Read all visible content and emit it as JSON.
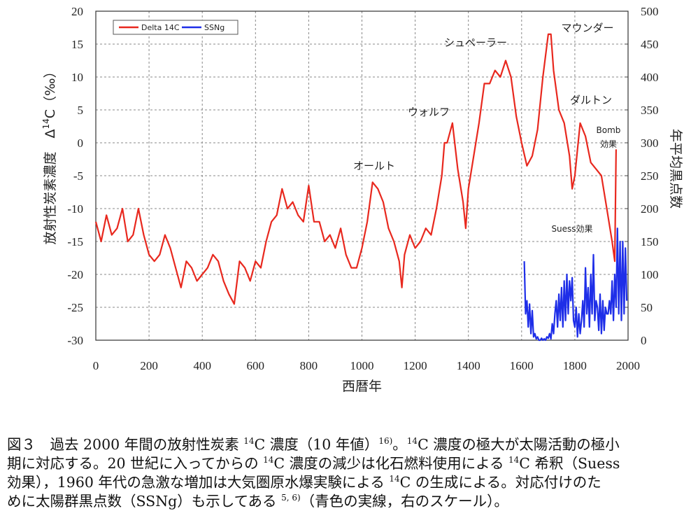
{
  "chart_data": {
    "type": "line",
    "x_label": "西暦年",
    "y_label": [
      {
        "text": "放射性炭素濃度　Δ"
      },
      {
        "sup": "14"
      },
      {
        "text": "C（‰）"
      }
    ],
    "y2_label": "年平均黒点数",
    "xlim": [
      0,
      2000
    ],
    "xticks": [
      0,
      200,
      400,
      600,
      800,
      1000,
      1200,
      1400,
      1600,
      1800,
      2000
    ],
    "ylim": [
      -30,
      20
    ],
    "yticks": [
      -30,
      -25,
      -20,
      -15,
      -10,
      -5,
      0,
      5,
      10,
      15,
      20
    ],
    "y2lim": [
      0,
      500
    ],
    "y2ticks": [
      0,
      50,
      100,
      150,
      200,
      250,
      300,
      350,
      400,
      450,
      500
    ],
    "grid": true,
    "legend": "upper left",
    "annotations": [
      "オールト",
      "ウォルフ",
      "シュペーラー",
      "マウンダー",
      "ダルトン",
      "Bomb",
      "効果",
      "Suess効果"
    ],
    "series": [
      {
        "name": "Delta 14C",
        "color": "#e8281e",
        "x": [
          0,
          20,
          40,
          60,
          80,
          100,
          120,
          140,
          160,
          180,
          200,
          220,
          240,
          260,
          280,
          300,
          320,
          340,
          360,
          380,
          400,
          420,
          440,
          460,
          480,
          500,
          520,
          540,
          560,
          580,
          600,
          620,
          640,
          660,
          680,
          700,
          720,
          740,
          760,
          780,
          800,
          820,
          840,
          860,
          880,
          900,
          920,
          940,
          960,
          980,
          1000,
          1020,
          1040,
          1060,
          1080,
          1100,
          1120,
          1140,
          1150,
          1160,
          1180,
          1200,
          1220,
          1240,
          1260,
          1280,
          1300,
          1310,
          1320,
          1340,
          1360,
          1380,
          1390,
          1400,
          1420,
          1440,
          1460,
          1480,
          1500,
          1520,
          1540,
          1560,
          1580,
          1600,
          1620,
          1640,
          1660,
          1680,
          1700,
          1710,
          1720,
          1740,
          1760,
          1780,
          1790,
          1800,
          1820,
          1840,
          1860,
          1880,
          1900,
          1920,
          1940,
          1950,
          1955
        ],
        "values": [
          -12,
          -15,
          -11,
          -14,
          -13,
          -10,
          -15,
          -14,
          -10,
          -14,
          -17,
          -18,
          -17,
          -14,
          -16,
          -19,
          -22,
          -18,
          -19,
          -21,
          -20,
          -19,
          -17,
          -18,
          -21,
          -23,
          -24.5,
          -18,
          -19,
          -21,
          -18,
          -19,
          -15,
          -12,
          -11,
          -7,
          -10,
          -9,
          -11,
          -12,
          -6.5,
          -12,
          -12,
          -15,
          -14,
          -16,
          -13,
          -17,
          -19,
          -19,
          -16,
          -12,
          -6,
          -7,
          -9,
          -13,
          -15,
          -18,
          -22,
          -17,
          -14,
          -16,
          -15,
          -13,
          -14,
          -10,
          -5,
          0,
          0,
          3,
          -4,
          -9,
          -13,
          -7,
          -2,
          3,
          9,
          9,
          11,
          10,
          12.5,
          10,
          4,
          0,
          -3.5,
          -2,
          2,
          10,
          16.5,
          16.5,
          11,
          5,
          3,
          -2,
          -7,
          -5,
          3,
          1,
          -3,
          -4,
          -5,
          -10,
          -15,
          -18,
          -1
        ]
      },
      {
        "name": "SSNg",
        "color": "#1e2ee8",
        "axis": "y2",
        "x": [
          1610,
          1615,
          1620,
          1625,
          1630,
          1635,
          1640,
          1645,
          1650,
          1655,
          1660,
          1665,
          1670,
          1675,
          1680,
          1685,
          1690,
          1695,
          1700,
          1705,
          1710,
          1715,
          1720,
          1725,
          1730,
          1735,
          1740,
          1745,
          1750,
          1755,
          1760,
          1765,
          1770,
          1775,
          1780,
          1785,
          1790,
          1795,
          1800,
          1805,
          1810,
          1815,
          1820,
          1825,
          1830,
          1835,
          1840,
          1845,
          1850,
          1855,
          1860,
          1865,
          1870,
          1875,
          1880,
          1885,
          1890,
          1895,
          1900,
          1905,
          1910,
          1915,
          1920,
          1925,
          1930,
          1935,
          1940,
          1945,
          1950,
          1955,
          1960,
          1965,
          1970,
          1975,
          1980,
          1985,
          1990,
          1995
        ],
        "values": [
          120,
          40,
          60,
          20,
          55,
          10,
          45,
          5,
          10,
          2,
          5,
          0,
          0,
          3,
          0,
          2,
          0,
          5,
          3,
          10,
          2,
          25,
          10,
          40,
          60,
          20,
          70,
          30,
          80,
          20,
          90,
          30,
          100,
          40,
          90,
          60,
          95,
          30,
          20,
          50,
          5,
          40,
          10,
          30,
          60,
          20,
          110,
          40,
          80,
          20,
          100,
          40,
          130,
          30,
          60,
          50,
          15,
          70,
          10,
          60,
          15,
          50,
          40,
          40,
          60,
          40,
          90,
          30,
          100,
          50,
          170,
          40,
          150,
          30,
          150,
          40,
          140,
          60
        ]
      }
    ]
  },
  "caption_lines": [
    [
      {
        "text": "図３　過去 2000 年間の放射性炭素 "
      },
      {
        "sup": "14"
      },
      {
        "text": "C 濃度（10 年値）"
      },
      {
        "sup": "16)"
      },
      {
        "text": "。"
      },
      {
        "sup": "14"
      },
      {
        "text": "C 濃度の極大が太陽活動の極小"
      }
    ],
    [
      {
        "text": "期に対応する。20 世紀に入ってからの "
      },
      {
        "sup": "14"
      },
      {
        "text": "C 濃度の減少は化石燃料使用による "
      },
      {
        "sup": "14"
      },
      {
        "text": "C 希釈（Suess"
      }
    ],
    [
      {
        "text": "効果），1960 年代の急激な増加は大気圏原水爆実験による "
      },
      {
        "sup": "14"
      },
      {
        "text": "C の生成による。対応付けのた"
      }
    ],
    [
      {
        "text": "めに太陽群黒点数（SSNg）も示してある "
      },
      {
        "sup": "5, 6)"
      },
      {
        "text": "（青色の実線，右のスケール）。"
      }
    ]
  ]
}
